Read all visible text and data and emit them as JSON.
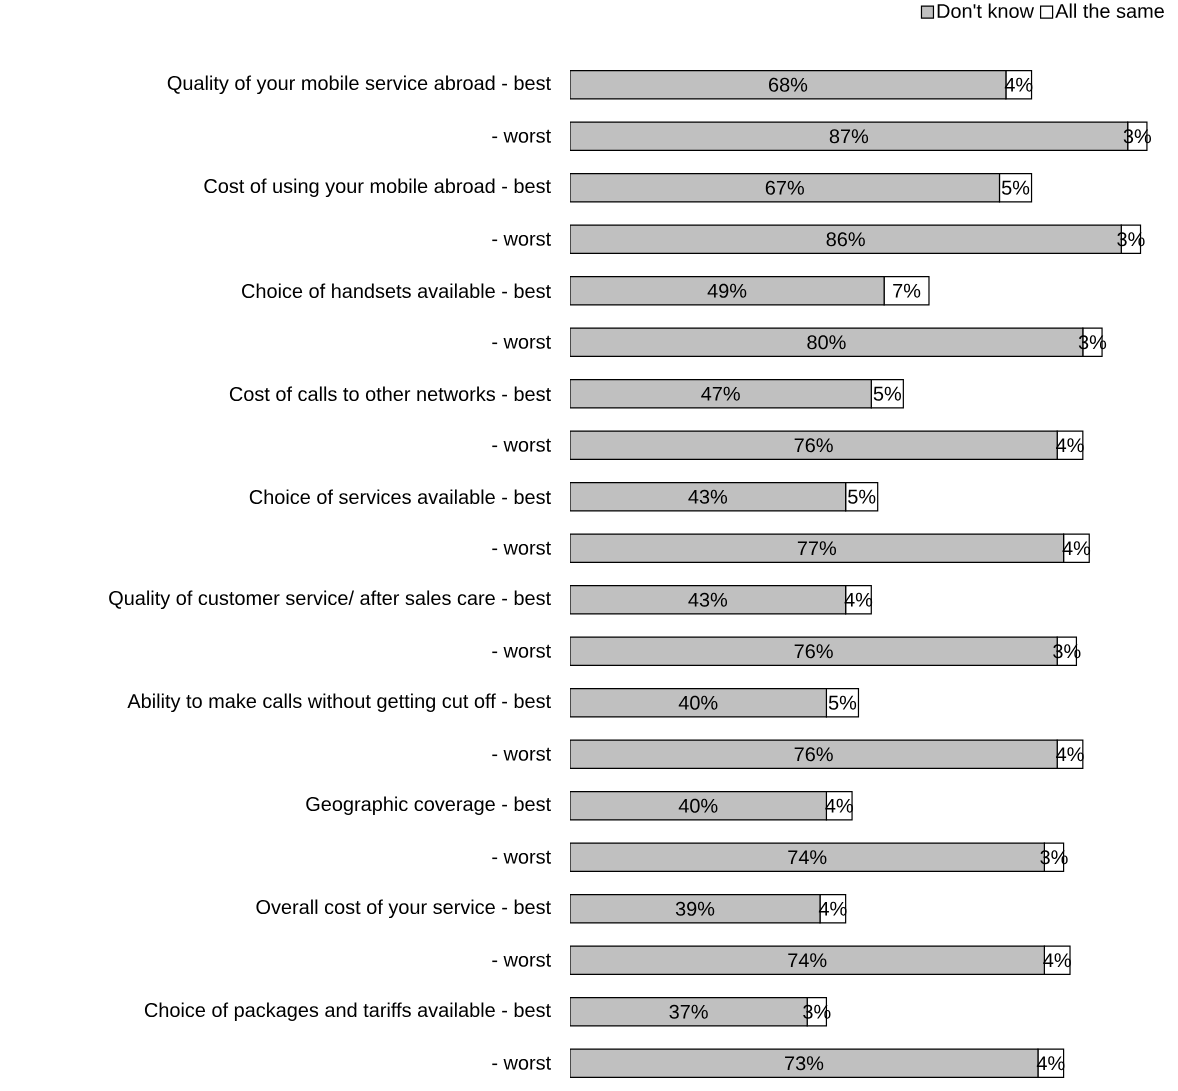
{
  "chart_data": {
    "type": "bar",
    "orientation": "horizontal",
    "stacked": true,
    "legend": "top right",
    "categories": [
      "Quality of your mobile service abroad - best",
      "- worst",
      "Cost of using your mobile abroad - best",
      "- worst",
      "Choice of handsets available - best",
      "- worst",
      "Cost of calls to other networks - best",
      "- worst",
      "Choice of services available - best",
      "- worst",
      "Quality of customer service/ after sales care - best",
      "- worst",
      "Ability to make calls without getting cut off - best",
      "- worst",
      "Geographic coverage - best",
      "- worst",
      "Overall cost of your service - best",
      "- worst",
      "Choice of packages and tariffs available - best",
      "- worst"
    ],
    "series": [
      {
        "name": "Don't know",
        "color": "#c0c0c0",
        "values": [
          68,
          87,
          67,
          86,
          49,
          80,
          47,
          76,
          43,
          77,
          43,
          76,
          40,
          76,
          40,
          74,
          39,
          74,
          37,
          73
        ],
        "value_labels": [
          "68%",
          "87%",
          "67%",
          "86%",
          "49%",
          "80%",
          "47%",
          "76%",
          "43%",
          "77%",
          "43%",
          "76%",
          "40%",
          "76%",
          "40%",
          "74%",
          "39%",
          "74%",
          "37%",
          "73%"
        ]
      },
      {
        "name": "All the same",
        "color": "#ffffff",
        "values": [
          4,
          3,
          5,
          3,
          7,
          3,
          5,
          4,
          5,
          4,
          4,
          3,
          5,
          4,
          4,
          3,
          4,
          4,
          3,
          4
        ],
        "value_labels": [
          "4%",
          "3%",
          "5%",
          "3%",
          "7%",
          "3%",
          "5%",
          "4%",
          "5%",
          "4%",
          "4%",
          "3%",
          "5%",
          "4%",
          "4%",
          "3%",
          "4%",
          "4%",
          "3%",
          "4%"
        ]
      }
    ]
  }
}
